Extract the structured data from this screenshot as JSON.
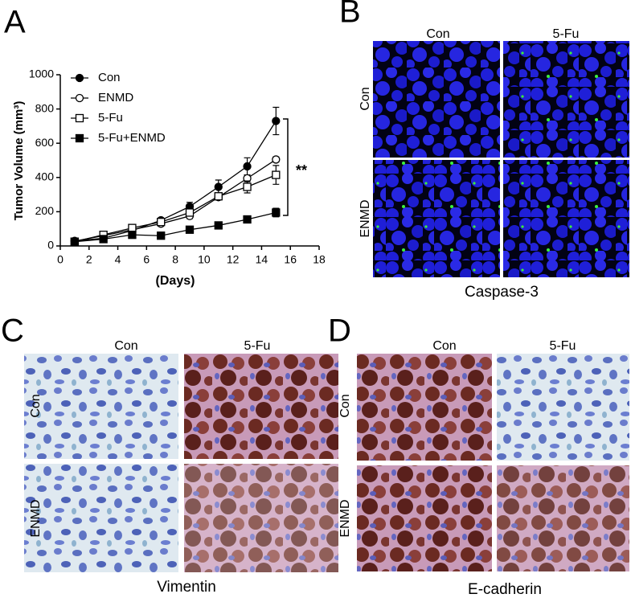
{
  "chart_data": {
    "type": "line",
    "panel_label": "A",
    "x_label": "(Days)",
    "y_label": "Tumor Volume (mm³)",
    "x": [
      1,
      3,
      5,
      7,
      9,
      11,
      13,
      15
    ],
    "series": [
      {
        "name": "Con",
        "color": "#000000",
        "marker": "circle",
        "filled": true,
        "values": [
          30,
          45,
          90,
          150,
          230,
          345,
          465,
          730
        ],
        "errors": [
          5,
          8,
          10,
          12,
          25,
          40,
          50,
          80
        ]
      },
      {
        "name": "ENMD",
        "color": "#000000",
        "marker": "circle",
        "filled": false,
        "values": [
          28,
          60,
          95,
          130,
          175,
          285,
          395,
          505
        ],
        "errors": [
          3,
          5,
          8,
          10,
          15,
          15,
          20,
          15
        ]
      },
      {
        "name": "5-Fu",
        "color": "#000000",
        "marker": "square",
        "filled": false,
        "values": [
          25,
          65,
          105,
          140,
          195,
          290,
          345,
          415
        ],
        "errors": [
          3,
          8,
          12,
          10,
          20,
          20,
          35,
          55
        ]
      },
      {
        "name": "5-Fu+ENMD",
        "color": "#000000",
        "marker": "square",
        "filled": true,
        "values": [
          25,
          40,
          65,
          60,
          95,
          120,
          155,
          195
        ],
        "errors": [
          3,
          5,
          8,
          8,
          10,
          10,
          15,
          25
        ]
      }
    ],
    "xlim": [
      0,
      18
    ],
    "xticks": [
      0,
      2,
      4,
      6,
      8,
      10,
      12,
      14,
      16,
      18
    ],
    "ylim": [
      0,
      1000
    ],
    "yticks": [
      0,
      200,
      400,
      600,
      800,
      1000
    ],
    "annotation": "**",
    "legend": "upper left"
  },
  "panels": [
    {
      "label": "B",
      "columns": [
        "Con",
        "5-Fu"
      ],
      "rows": [
        "Con",
        "ENMD"
      ],
      "caption": "Caspase-3"
    },
    {
      "label": "C",
      "columns": [
        "Con",
        "5-Fu"
      ],
      "rows": [
        "Con",
        "ENMD"
      ],
      "caption": "Vimentin"
    },
    {
      "label": "D",
      "columns": [
        "Con",
        "5-Fu"
      ],
      "rows": [
        "Con",
        "ENMD"
      ],
      "caption": "E-cadherin"
    }
  ]
}
